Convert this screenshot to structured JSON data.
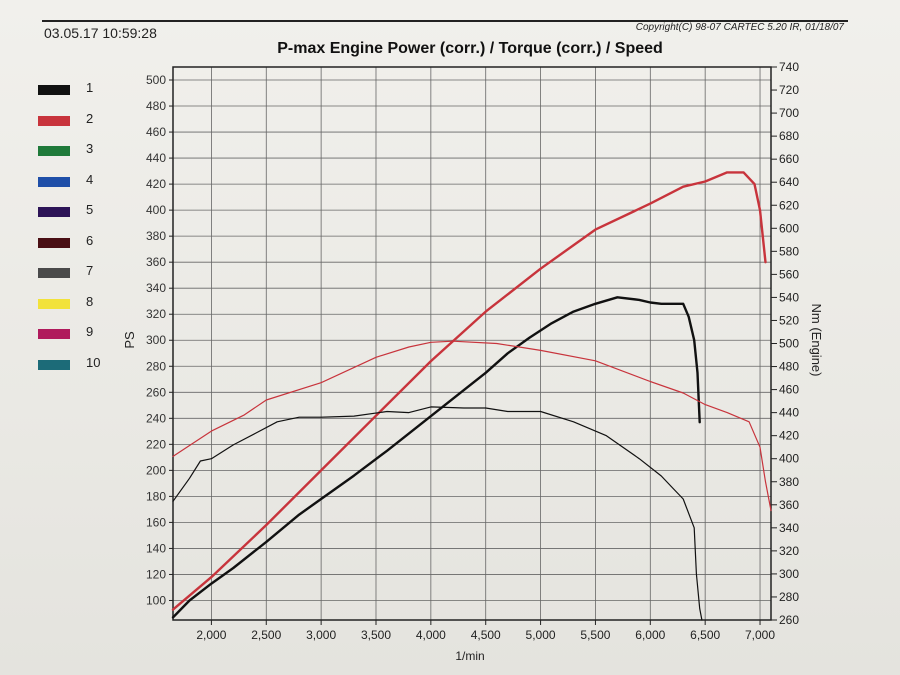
{
  "header": {
    "date_time": "03.05.17 10:59:28",
    "copyright": "Copyright(C) 98-07 CARTEC 5.20 IR, 01/18/07",
    "title": "P-max Engine Power (corr.) / Torque (corr.) / Speed"
  },
  "legend": [
    {
      "label": "1",
      "color": "#111111"
    },
    {
      "label": "2",
      "color": "#c8343c"
    },
    {
      "label": "3",
      "color": "#1f7a3a"
    },
    {
      "label": "4",
      "color": "#1f4fa8"
    },
    {
      "label": "5",
      "color": "#2d1457"
    },
    {
      "label": "6",
      "color": "#4a0f14"
    },
    {
      "label": "7",
      "color": "#4a4a4a"
    },
    {
      "label": "8",
      "color": "#f2e23a"
    },
    {
      "label": "9",
      "color": "#b01a5c"
    },
    {
      "label": "10",
      "color": "#1c6b78"
    }
  ],
  "chart_data": {
    "type": "line",
    "title": "P-max Engine Power (corr.) / Torque (corr.) / Speed",
    "xlabel": "1/min",
    "ylabel_left": "PS",
    "ylabel_right": "Nm (Engine)",
    "xlim": [
      1650,
      7100
    ],
    "ylim_left": [
      85,
      510
    ],
    "ylim_right": [
      260,
      740
    ],
    "x_ticks": [
      2000,
      2500,
      3000,
      3500,
      4000,
      4500,
      5000,
      5500,
      6000,
      6500,
      7000
    ],
    "x_tick_labels": [
      "2,000",
      "2,500",
      "3,000",
      "3,500",
      "4,000",
      "4,500",
      "5,000",
      "5,500",
      "6,000",
      "6,500",
      "7,000"
    ],
    "y_left_ticks": [
      100,
      120,
      140,
      160,
      180,
      200,
      220,
      240,
      260,
      280,
      300,
      320,
      340,
      360,
      380,
      400,
      420,
      440,
      460,
      480,
      500
    ],
    "y_right_ticks": [
      260,
      280,
      300,
      320,
      340,
      360,
      380,
      400,
      420,
      440,
      460,
      480,
      500,
      520,
      540,
      560,
      580,
      600,
      620,
      640,
      660,
      680,
      700,
      720,
      740
    ],
    "grid": true,
    "series": [
      {
        "name": "1 Power",
        "color": "#111111",
        "axis": "left",
        "width": 2.4,
        "x": [
          1650,
          1800,
          2000,
          2200,
          2500,
          2800,
          3000,
          3300,
          3600,
          3900,
          4200,
          4500,
          4700,
          4900,
          5100,
          5300,
          5500,
          5700,
          5900,
          6000,
          6100,
          6200,
          6300,
          6350,
          6400,
          6430,
          6450
        ],
        "y": [
          87,
          100,
          113,
          125,
          145,
          166,
          178,
          196,
          215,
          235,
          255,
          275,
          290,
          302,
          313,
          322,
          328,
          333,
          331,
          329,
          328,
          328,
          328,
          318,
          300,
          275,
          237
        ]
      },
      {
        "name": "2 Power",
        "color": "#c8343c",
        "axis": "left",
        "width": 2.4,
        "x": [
          1650,
          2000,
          2500,
          3000,
          3500,
          4000,
          4500,
          5000,
          5500,
          6000,
          6300,
          6500,
          6700,
          6850,
          6950,
          7000,
          7050
        ],
        "y": [
          93,
          118,
          158,
          200,
          242,
          284,
          322,
          355,
          385,
          405,
          418,
          422,
          429,
          429,
          420,
          400,
          360
        ]
      },
      {
        "name": "1 Torque",
        "color": "#111111",
        "axis": "right",
        "width": 1.2,
        "x": [
          1650,
          1800,
          1900,
          2000,
          2200,
          2400,
          2600,
          2800,
          3000,
          3300,
          3600,
          3800,
          4000,
          4300,
          4500,
          4700,
          5000,
          5300,
          5600,
          5900,
          6100,
          6200,
          6300,
          6400,
          6420,
          6450,
          6470
        ],
        "y": [
          363,
          383,
          398,
          400,
          412,
          422,
          432,
          436,
          436,
          437,
          441,
          440,
          445,
          444,
          444,
          441,
          441,
          432,
          420,
          400,
          385,
          375,
          365,
          340,
          300,
          270,
          260
        ]
      },
      {
        "name": "2 Torque",
        "color": "#c8343c",
        "axis": "right",
        "width": 1.2,
        "x": [
          1650,
          2000,
          2300,
          2500,
          3000,
          3500,
          3800,
          4000,
          4200,
          4600,
          5000,
          5500,
          6000,
          6300,
          6500,
          6700,
          6900,
          7000,
          7050,
          7100
        ],
        "y": [
          402,
          424,
          438,
          451,
          466,
          488,
          497,
          501,
          502,
          500,
          494,
          485,
          467,
          457,
          447,
          440,
          432,
          410,
          380,
          355
        ]
      }
    ]
  }
}
